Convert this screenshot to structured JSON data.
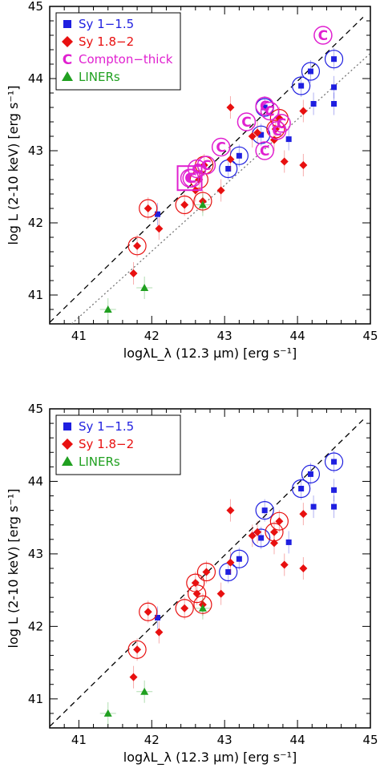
{
  "chart_data": [
    {
      "type": "scatter",
      "title": "",
      "xlabel": "logλL_λ (12.3 μm) [erg s⁻¹]",
      "ylabel": "log L (2-10 keV) [erg s⁻¹]",
      "xlim": [
        40.6,
        45.0
      ],
      "ylim": [
        40.6,
        45.0
      ],
      "x_ticks": [
        "41",
        "42",
        "43",
        "44",
        "45"
      ],
      "y_ticks": [
        "41",
        "42",
        "43",
        "44",
        "45"
      ],
      "legend": {
        "placement": "top-left",
        "entries": [
          {
            "label": "Sy  1−1.5",
            "marker": "square",
            "color": "#1f1fe0"
          },
          {
            "label": "Sy  1.8−2",
            "marker": "diamond",
            "color": "#e81010"
          },
          {
            "label": "Compton−thick",
            "marker": "C",
            "color": "#e020d0"
          },
          {
            "label": "LINERs",
            "marker": "triangle",
            "color": "#20a020"
          }
        ]
      },
      "lines": [
        {
          "style": "dashed",
          "points": [
            [
              40.6,
              40.62
            ],
            [
              44.9,
              44.85
            ]
          ]
        },
        {
          "style": "dotted",
          "points": [
            [
              40.9,
              40.6
            ],
            [
              45.0,
              44.35
            ]
          ]
        }
      ],
      "series": [
        {
          "name": "Sy  1−1.5",
          "marker": "square",
          "color": "#1f1fe0",
          "points": [
            [
              44.5,
              44.27
            ],
            [
              44.18,
              44.1
            ],
            [
              44.05,
              43.9
            ],
            [
              44.5,
              43.88
            ],
            [
              44.22,
              43.65
            ],
            [
              44.5,
              43.65
            ],
            [
              43.55,
              43.6
            ],
            [
              43.5,
              43.22
            ],
            [
              43.88,
              43.16
            ],
            [
              43.2,
              42.93
            ],
            [
              43.05,
              42.75
            ],
            [
              42.08,
              42.12
            ]
          ],
          "circled": [
            true,
            true,
            true,
            false,
            false,
            false,
            true,
            true,
            false,
            true,
            true,
            false
          ]
        },
        {
          "name": "Sy  1.8−2",
          "marker": "diamond",
          "color": "#e81010",
          "points": [
            [
              41.95,
              42.2
            ],
            [
              41.8,
              41.68
            ],
            [
              41.75,
              41.3
            ],
            [
              42.1,
              41.92
            ],
            [
              42.45,
              42.25
            ],
            [
              42.6,
              42.45
            ],
            [
              42.7,
              42.3
            ],
            [
              42.72,
              42.8
            ],
            [
              42.65,
              42.6
            ],
            [
              42.95,
              42.45
            ],
            [
              43.08,
              43.6
            ],
            [
              43.08,
              42.88
            ],
            [
              43.38,
              43.2
            ],
            [
              43.45,
              43.25
            ],
            [
              43.7,
              43.3
            ],
            [
              43.75,
              43.45
            ],
            [
              43.68,
              43.15
            ],
            [
              43.82,
              42.85
            ],
            [
              44.08,
              43.55
            ],
            [
              44.08,
              42.8
            ]
          ],
          "circled": [
            true,
            true,
            false,
            false,
            true,
            false,
            true,
            true,
            true,
            false,
            false,
            false,
            false,
            false,
            true,
            true,
            false,
            false,
            false,
            false
          ]
        },
        {
          "name": "Compton−thick",
          "marker": "C",
          "color": "#e020d0",
          "points": [
            [
              44.35,
              44.6
            ],
            [
              43.55,
              43.62
            ],
            [
              43.62,
              43.55
            ],
            [
              43.3,
              43.4
            ],
            [
              43.55,
              43.0
            ],
            [
              43.78,
              43.38
            ],
            [
              43.72,
              43.28
            ],
            [
              42.95,
              43.05
            ],
            [
              42.75,
              42.8
            ],
            [
              42.62,
              42.75
            ],
            [
              42.55,
              42.62
            ],
            [
              42.52,
              42.62
            ]
          ],
          "boxed": [
            false,
            false,
            false,
            false,
            false,
            false,
            false,
            false,
            false,
            false,
            false,
            true
          ]
        },
        {
          "name": "LINERs",
          "marker": "triangle",
          "color": "#20a020",
          "points": [
            [
              41.4,
              40.8
            ],
            [
              41.9,
              41.1
            ],
            [
              42.7,
              42.25
            ]
          ]
        }
      ]
    },
    {
      "type": "scatter",
      "title": "",
      "xlabel": "logλL_λ (12.3 μm) [erg s⁻¹]",
      "ylabel": "log L (2-10 keV) [erg s⁻¹]",
      "xlim": [
        40.6,
        45.0
      ],
      "ylim": [
        40.6,
        45.0
      ],
      "x_ticks": [
        "41",
        "42",
        "43",
        "44",
        "45"
      ],
      "y_ticks": [
        "41",
        "42",
        "43",
        "44",
        "45"
      ],
      "legend": {
        "placement": "top-left",
        "entries": [
          {
            "label": "Sy  1−1.5",
            "marker": "square",
            "color": "#1f1fe0"
          },
          {
            "label": "Sy  1.8−2",
            "marker": "diamond",
            "color": "#e81010"
          },
          {
            "label": "LINERs",
            "marker": "triangle",
            "color": "#20a020"
          }
        ]
      },
      "lines": [
        {
          "style": "dashed",
          "points": [
            [
              40.6,
              40.62
            ],
            [
              44.9,
              44.85
            ]
          ]
        }
      ],
      "series": [
        {
          "name": "Sy  1−1.5",
          "marker": "square",
          "color": "#1f1fe0",
          "points": [
            [
              44.5,
              44.27
            ],
            [
              44.18,
              44.1
            ],
            [
              44.05,
              43.9
            ],
            [
              44.5,
              43.88
            ],
            [
              44.22,
              43.65
            ],
            [
              44.5,
              43.65
            ],
            [
              43.55,
              43.6
            ],
            [
              43.5,
              43.22
            ],
            [
              43.88,
              43.16
            ],
            [
              43.2,
              42.93
            ],
            [
              43.05,
              42.75
            ],
            [
              42.08,
              42.12
            ]
          ],
          "circled": [
            true,
            true,
            true,
            false,
            false,
            false,
            true,
            true,
            false,
            true,
            true,
            false
          ]
        },
        {
          "name": "Sy  1.8−2",
          "marker": "diamond",
          "color": "#e81010",
          "points": [
            [
              41.95,
              42.2
            ],
            [
              41.8,
              41.68
            ],
            [
              41.75,
              41.3
            ],
            [
              42.1,
              41.92
            ],
            [
              42.45,
              42.25
            ],
            [
              42.6,
              42.6
            ],
            [
              42.7,
              42.3
            ],
            [
              42.75,
              42.75
            ],
            [
              42.62,
              42.45
            ],
            [
              42.95,
              42.45
            ],
            [
              43.08,
              43.6
            ],
            [
              43.08,
              42.88
            ],
            [
              43.38,
              43.25
            ],
            [
              43.45,
              43.3
            ],
            [
              43.68,
              43.3
            ],
            [
              43.75,
              43.45
            ],
            [
              43.68,
              43.15
            ],
            [
              43.82,
              42.85
            ],
            [
              44.08,
              43.55
            ],
            [
              44.08,
              42.8
            ]
          ],
          "circled": [
            true,
            true,
            false,
            false,
            true,
            true,
            true,
            true,
            true,
            false,
            false,
            false,
            false,
            false,
            true,
            true,
            false,
            false,
            false,
            false
          ]
        },
        {
          "name": "LINERs",
          "marker": "triangle",
          "color": "#20a020",
          "points": [
            [
              41.4,
              40.8
            ],
            [
              41.9,
              41.1
            ],
            [
              42.7,
              42.25
            ]
          ]
        }
      ]
    }
  ]
}
